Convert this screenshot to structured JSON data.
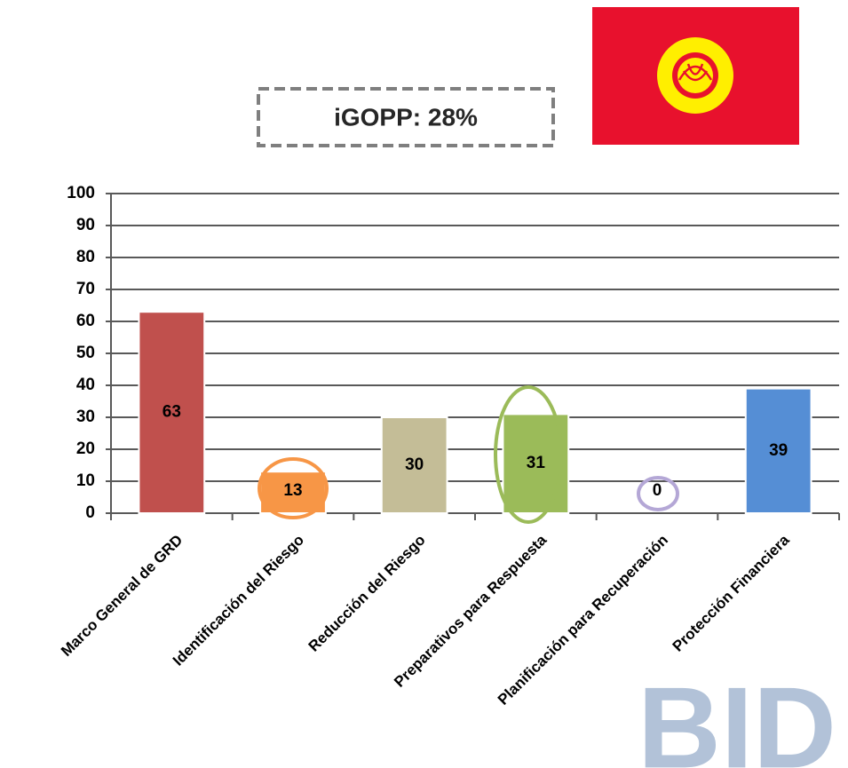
{
  "chart_data": {
    "type": "bar",
    "title": "iGOPP: 28%",
    "categories": [
      "Marco General de GRD",
      "Identificación del Riesgo",
      "Reducción del Riesgo",
      "Preparativos para Respuesta",
      "Planificación para Recuperación",
      "Protección Financiera"
    ],
    "values": [
      63,
      13,
      30,
      31,
      0,
      39
    ],
    "colors": [
      "#c0504d",
      "#f79646",
      "#c4bd97",
      "#9bbb59",
      "#8064a2",
      "#558ed5"
    ],
    "ylim": [
      0,
      100
    ],
    "yticks": [
      0,
      10,
      20,
      30,
      40,
      50,
      60,
      70,
      80,
      90,
      100
    ],
    "grid": true,
    "logo": "BID"
  }
}
